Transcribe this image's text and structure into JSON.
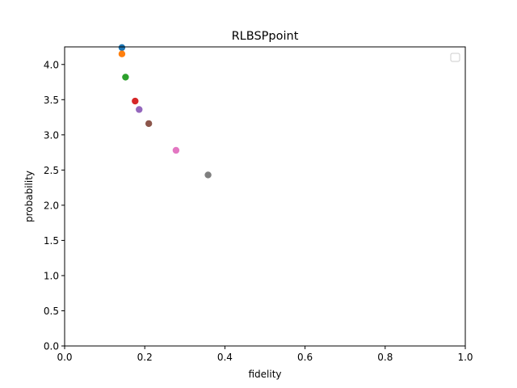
{
  "chart_data": {
    "type": "scatter",
    "title": "RLBSPpoint",
    "xlabel": "fidelity",
    "ylabel": "probability",
    "xlim": [
      0.0,
      1.0
    ],
    "ylim": [
      0.0,
      4.25
    ],
    "xticks": [
      0.0,
      0.2,
      0.4,
      0.6,
      0.8,
      1.0
    ],
    "xtick_labels": [
      "0.0",
      "0.2",
      "0.4",
      "0.6",
      "0.8",
      "1.0"
    ],
    "yticks": [
      0.0,
      0.5,
      1.0,
      1.5,
      2.0,
      2.5,
      3.0,
      3.5,
      4.0
    ],
    "ytick_labels": [
      "0.0",
      "0.5",
      "1.0",
      "1.5",
      "2.0",
      "2.5",
      "3.0",
      "3.5",
      "4.0"
    ],
    "grid": false,
    "legend": "upper-right (empty)",
    "points": [
      {
        "x": 0.143,
        "y": 4.24,
        "color": "#1f77b4"
      },
      {
        "x": 0.143,
        "y": 4.15,
        "color": "#ff7f0e"
      },
      {
        "x": 0.152,
        "y": 3.82,
        "color": "#2ca02c"
      },
      {
        "x": 0.176,
        "y": 3.48,
        "color": "#d62728"
      },
      {
        "x": 0.186,
        "y": 3.36,
        "color": "#9467bd"
      },
      {
        "x": 0.21,
        "y": 3.16,
        "color": "#8c564b"
      },
      {
        "x": 0.278,
        "y": 2.78,
        "color": "#e377c2"
      },
      {
        "x": 0.358,
        "y": 2.43,
        "color": "#7f7f7f"
      }
    ]
  }
}
